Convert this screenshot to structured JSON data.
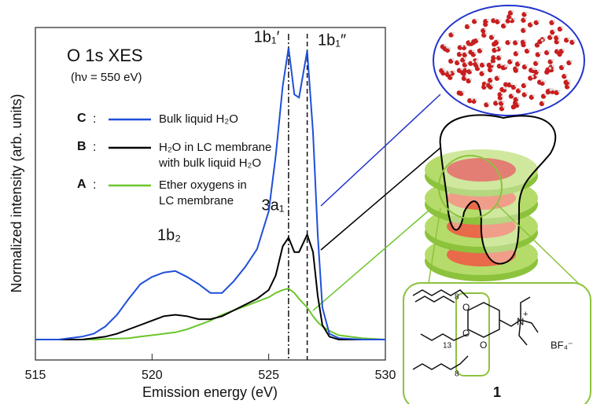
{
  "chart_data": {
    "type": "line",
    "title": "O 1s XES",
    "subtitle": "(hν = 550 eV)",
    "x_label": "Emission energy (eV)",
    "y_label": "Normalized intensity (arb. units)",
    "xlim": [
      515,
      530
    ],
    "ylim": [
      -0.07,
      1.07
    ],
    "xticks": [
      515,
      520,
      525,
      530
    ],
    "x": [
      515,
      516,
      517,
      517.5,
      518,
      518.5,
      519,
      519.5,
      520,
      520.5,
      521,
      521.5,
      522,
      522.5,
      523,
      523.5,
      524,
      524.5,
      525,
      525.3,
      525.6,
      525.85,
      526.1,
      526.3,
      526.65,
      526.9,
      527.1,
      527.3,
      527.6,
      528,
      529,
      530
    ],
    "series": [
      {
        "key": "C",
        "name": "Bulk liquid H₂O",
        "color": "#1f4fd8",
        "values": [
          0,
          0,
          0.01,
          0.02,
          0.045,
          0.085,
          0.14,
          0.19,
          0.215,
          0.23,
          0.235,
          0.215,
          0.19,
          0.16,
          0.16,
          0.2,
          0.25,
          0.31,
          0.44,
          0.63,
          0.87,
          1.0,
          0.84,
          0.83,
          0.99,
          0.71,
          0.36,
          0.11,
          0.02,
          0.005,
          0,
          0
        ]
      },
      {
        "key": "B",
        "name": "H₂O in LC membrane\nwith bulk liquid H₂O",
        "color": "#000000",
        "values": [
          0,
          0,
          0,
          0.005,
          0.01,
          0.02,
          0.035,
          0.05,
          0.065,
          0.08,
          0.085,
          0.08,
          0.07,
          0.07,
          0.08,
          0.1,
          0.12,
          0.14,
          0.17,
          0.22,
          0.32,
          0.35,
          0.3,
          0.3,
          0.36,
          0.3,
          0.15,
          0.05,
          0.01,
          0,
          0,
          0
        ]
      },
      {
        "key": "A",
        "name": "Ether oxygens in\nLC membrane",
        "color": "#6cc62c",
        "values": [
          0,
          0,
          0,
          0,
          0.002,
          0.003,
          0.005,
          0.01,
          0.015,
          0.02,
          0.025,
          0.035,
          0.05,
          0.065,
          0.085,
          0.1,
          0.115,
          0.13,
          0.145,
          0.16,
          0.17,
          0.175,
          0.16,
          0.14,
          0.11,
          0.08,
          0.06,
          0.045,
          0.03,
          0.015,
          0.005,
          0
        ]
      }
    ],
    "vlines": [
      525.85,
      526.65
    ],
    "peak_labels": [
      "1b₂",
      "3a₁",
      "1b₁′",
      "1b₁″"
    ],
    "illustration": {
      "compound_number": "1",
      "counterion": "BF₄⁻",
      "chain_subscripts": [
        "8",
        "13",
        "8"
      ],
      "nitrogen": "N",
      "charge": "+"
    }
  }
}
